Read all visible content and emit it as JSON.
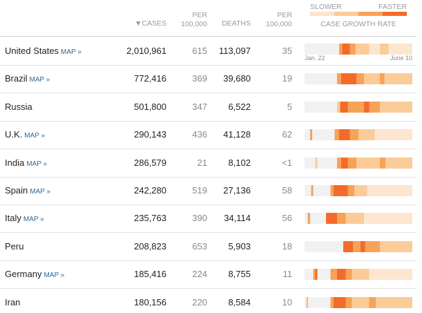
{
  "header": {
    "sort_icon": "▼",
    "cases": "CASES",
    "cases_per": {
      "line1": "PER",
      "line2": "100,000"
    },
    "deaths": "DEATHS",
    "deaths_per": {
      "line1": "PER",
      "line2": "100,000"
    }
  },
  "legend": {
    "slower": "SLOWER",
    "faster": "FASTER",
    "title": "CASE GROWTH RATE",
    "start": "Jan. 22",
    "end": "June 10"
  },
  "table": {
    "rows": [
      {
        "name": "United States",
        "map": "MAP »",
        "cases": "2,010,961",
        "cases_per": "615",
        "deaths": "113,097",
        "deaths_per": "35"
      },
      {
        "name": "Brazil",
        "map": "MAP »",
        "cases": "772,416",
        "cases_per": "369",
        "deaths": "39,680",
        "deaths_per": "19"
      },
      {
        "name": "Russia",
        "cases": "501,800",
        "cases_per": "347",
        "deaths": "6,522",
        "deaths_per": "5"
      },
      {
        "name": "U.K.",
        "map": "MAP »",
        "cases": "290,143",
        "cases_per": "436",
        "deaths": "41,128",
        "deaths_per": "62"
      },
      {
        "name": "India",
        "map": "MAP »",
        "cases": "286,579",
        "cases_per": "21",
        "deaths": "8,102",
        "deaths_per": "<1"
      },
      {
        "name": "Spain",
        "map": "MAP »",
        "cases": "242,280",
        "cases_per": "519",
        "deaths": "27,136",
        "deaths_per": "58"
      },
      {
        "name": "Italy",
        "map": "MAP »",
        "cases": "235,763",
        "cases_per": "390",
        "deaths": "34,114",
        "deaths_per": "56"
      },
      {
        "name": "Peru",
        "cases": "208,823",
        "cases_per": "653",
        "deaths": "5,903",
        "deaths_per": "18"
      },
      {
        "name": "Germany",
        "map": "MAP »",
        "cases": "185,416",
        "cases_per": "224",
        "deaths": "8,755",
        "deaths_per": "11"
      },
      {
        "name": "Iran",
        "cases": "180,156",
        "cases_per": "220",
        "deaths": "8,584",
        "deaths_per": "10"
      }
    ]
  }
}
